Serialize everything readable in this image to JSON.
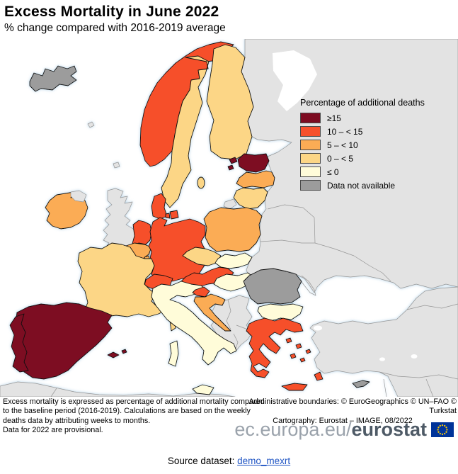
{
  "title": "Excess Mortality in June 2022",
  "subtitle": "% change compared with 2016-2019 average",
  "legend": {
    "title": "Percentage of additional deaths",
    "items": [
      {
        "key": "ge15",
        "label": "≥15",
        "color": "#7d0b21"
      },
      {
        "key": "c10_15",
        "label": "10 – < 15",
        "color": "#f6502c"
      },
      {
        "key": "c5_10",
        "label": "5 – < 10",
        "color": "#fbac55"
      },
      {
        "key": "c0_5",
        "label": "0 – < 5",
        "color": "#fcd686"
      },
      {
        "key": "le0",
        "label": "≤ 0",
        "color": "#fffcd9"
      },
      {
        "key": "na",
        "label": "Data not available",
        "color": "#9c9c9c"
      }
    ]
  },
  "map": {
    "other_colors": {
      "non_eu_land": "#e3e3e3",
      "sea": "#ffffff",
      "border_eu": "#111111",
      "border_non_eu": "#969696",
      "coast_glow": "#a9cce3"
    },
    "countries": [
      {
        "id": "iceland",
        "name": "Iceland",
        "category": "na"
      },
      {
        "id": "norway",
        "name": "Norway",
        "category": "c10_15"
      },
      {
        "id": "sweden",
        "name": "Sweden",
        "category": "c0_5"
      },
      {
        "id": "finland",
        "name": "Finland",
        "category": "c0_5"
      },
      {
        "id": "estonia",
        "name": "Estonia",
        "category": "ge15"
      },
      {
        "id": "latvia",
        "name": "Latvia",
        "category": "c5_10"
      },
      {
        "id": "lithuania",
        "name": "Lithuania",
        "category": "c0_5"
      },
      {
        "id": "denmark",
        "name": "Denmark",
        "category": "c10_15"
      },
      {
        "id": "ireland",
        "name": "Ireland",
        "category": "c5_10"
      },
      {
        "id": "netherlands",
        "name": "Netherlands",
        "category": "c10_15"
      },
      {
        "id": "belgium",
        "name": "Belgium",
        "category": "c5_10"
      },
      {
        "id": "luxembourg",
        "name": "Luxembourg",
        "category": "c5_10"
      },
      {
        "id": "germany",
        "name": "Germany",
        "category": "c10_15"
      },
      {
        "id": "poland",
        "name": "Poland",
        "category": "c5_10"
      },
      {
        "id": "czechia",
        "name": "Czechia",
        "category": "c0_5"
      },
      {
        "id": "slovakia",
        "name": "Slovakia",
        "category": "le0"
      },
      {
        "id": "austria",
        "name": "Austria",
        "category": "c10_15"
      },
      {
        "id": "switzerland",
        "name": "Switzerland",
        "category": "c10_15"
      },
      {
        "id": "france",
        "name": "France",
        "category": "c0_5"
      },
      {
        "id": "spain",
        "name": "Spain",
        "category": "ge15"
      },
      {
        "id": "portugal",
        "name": "Portugal",
        "category": "ge15"
      },
      {
        "id": "italy",
        "name": "Italy",
        "category": "le0"
      },
      {
        "id": "slovenia",
        "name": "Slovenia",
        "category": "c10_15"
      },
      {
        "id": "croatia",
        "name": "Croatia",
        "category": "c5_10"
      },
      {
        "id": "hungary",
        "name": "Hungary",
        "category": "le0"
      },
      {
        "id": "romania",
        "name": "Romania",
        "category": "na"
      },
      {
        "id": "bulgaria",
        "name": "Bulgaria",
        "category": "le0"
      },
      {
        "id": "greece",
        "name": "Greece",
        "category": "c10_15"
      },
      {
        "id": "cyprus",
        "name": "Cyprus",
        "category": "na"
      }
    ]
  },
  "notes": {
    "lines": [
      "Excess mortality is expressed as percentage of additional mortality compared",
      "to the baseline period (2016-2019). Calculations are based on the weekly",
      "deaths data by attributing weeks to months.",
      "Data for 2022 are provisional."
    ]
  },
  "credits": {
    "lines": [
      "Administrative boundaries: © EuroGeographics © UN–FAO © Turkstat",
      "Cartography: Eurostat – IMAGE, 08/2022"
    ]
  },
  "logo": {
    "prefix": "ec.europa.eu/",
    "brand": "eurostat",
    "flag_blue": "#003399",
    "flag_star": "#ffcc00"
  },
  "source": {
    "label": "Source dataset: ",
    "link": "demo_mexrt"
  }
}
